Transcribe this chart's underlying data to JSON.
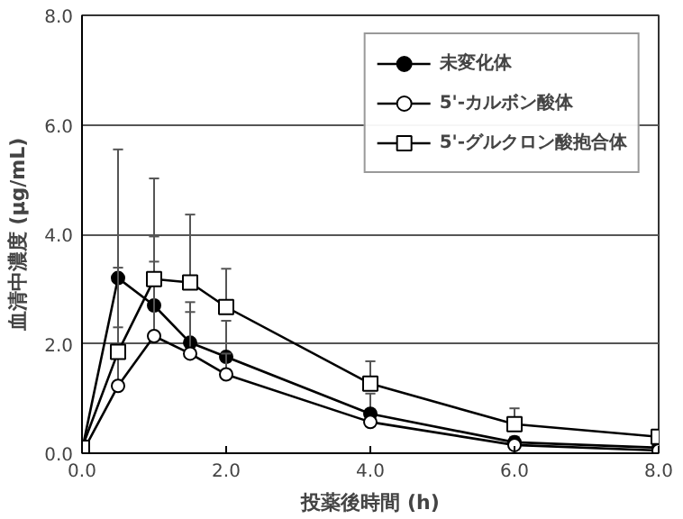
{
  "chart_data": {
    "type": "line",
    "xlabel": "投薬後時間 (h)",
    "ylabel": "血清中濃度 (μg/mL)",
    "x": [
      0,
      0.5,
      1,
      1.5,
      2,
      4,
      6,
      8
    ],
    "xlim": [
      0,
      8
    ],
    "ylim": [
      0,
      8
    ],
    "xticks": [
      {
        "value": 0,
        "label": "0.0"
      },
      {
        "value": 2,
        "label": "2.0"
      },
      {
        "value": 4,
        "label": "4.0"
      },
      {
        "value": 6,
        "label": "6.0"
      },
      {
        "value": 8,
        "label": "8.0"
      }
    ],
    "yticks": [
      {
        "value": 0,
        "label": "0.0"
      },
      {
        "value": 2,
        "label": "2.0"
      },
      {
        "value": 4,
        "label": "4.0"
      },
      {
        "value": 6,
        "label": "6.0"
      },
      {
        "value": 8,
        "label": "8.0"
      }
    ],
    "grid": "y",
    "legend": "top right",
    "series": [
      {
        "name": "未変化体",
        "color": "#000000",
        "marker": "circle",
        "values": [
          0.05,
          3.2,
          2.7,
          2.02,
          1.76,
          0.72,
          0.2,
          0.1
        ],
        "errors": [
          null,
          [
            3.2,
            5.55
          ],
          [
            2.7,
            3.96
          ],
          [
            2.02,
            2.76
          ],
          [
            1.76,
            2.42
          ],
          [
            0.72,
            1.09
          ],
          [
            0.2,
            0.3
          ],
          null
        ]
      },
      {
        "name": "5'-カルボン酸体",
        "color": "#ffffff",
        "marker": "circle",
        "values": [
          0,
          1.23,
          2.14,
          1.82,
          1.44,
          0.57,
          0.15,
          0.05
        ],
        "errors": [
          null,
          [
            1.23,
            2.3
          ],
          [
            2.14,
            3.5
          ],
          [
            1.82,
            2.58
          ],
          [
            1.44,
            1.82
          ],
          null,
          null,
          null
        ]
      },
      {
        "name": "5'-グルクロン酸抱合体",
        "color": "#ffffff",
        "marker": "square",
        "values": [
          0.1,
          1.85,
          3.18,
          3.12,
          2.67,
          1.27,
          0.53,
          0.3
        ],
        "errors": [
          null,
          [
            1.85,
            3.39
          ],
          [
            3.18,
            5.02
          ],
          [
            3.12,
            4.36
          ],
          [
            2.67,
            3.37
          ],
          [
            1.27,
            1.68
          ],
          [
            0.53,
            0.82
          ],
          [
            0.3,
            0.4
          ]
        ]
      }
    ]
  }
}
